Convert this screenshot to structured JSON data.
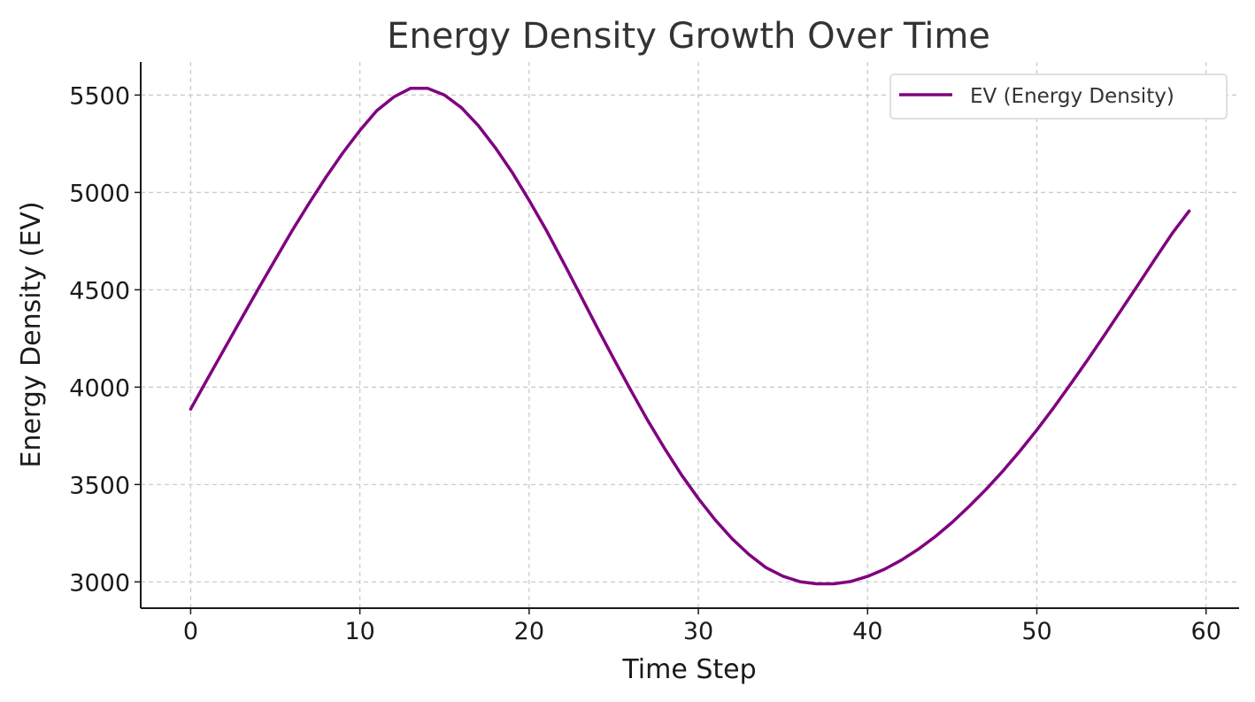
{
  "chart_data": {
    "type": "line",
    "title": "Energy Density Growth Over Time",
    "xlabel": "Time Step",
    "ylabel": "Energy Density (EV)",
    "xlim": [
      -2.95,
      61.95
    ],
    "ylim": [
      2865,
      5670
    ],
    "x_ticks": [
      0,
      10,
      20,
      30,
      40,
      50,
      60
    ],
    "y_ticks": [
      3000,
      3500,
      4000,
      4500,
      5000,
      5500
    ],
    "x_tick_labels": [
      "0",
      "10",
      "20",
      "30",
      "40",
      "50",
      "60"
    ],
    "y_tick_labels": [
      "3000",
      "3500",
      "4000",
      "4500",
      "5000",
      "5500"
    ],
    "grid": true,
    "legend_position": "top-right",
    "series": [
      {
        "name": "EV (Energy Density)",
        "color": "#800080",
        "x": [
          0,
          1,
          2,
          3,
          4,
          5,
          6,
          7,
          8,
          9,
          10,
          11,
          12,
          13,
          14,
          15,
          16,
          17,
          18,
          19,
          20,
          21,
          22,
          23,
          24,
          25,
          26,
          27,
          28,
          29,
          30,
          31,
          32,
          33,
          34,
          35,
          36,
          37,
          38,
          39,
          40,
          41,
          42,
          43,
          44,
          45,
          46,
          47,
          48,
          49,
          50,
          51,
          52,
          53,
          54,
          55,
          56,
          57,
          58,
          59
        ],
        "values": [
          3887,
          4043,
          4198,
          4352,
          4505,
          4655,
          4804,
          4945,
          5079,
          5204,
          5318,
          5420,
          5490,
          5535,
          5535,
          5500,
          5435,
          5343,
          5230,
          5103,
          4960,
          4808,
          4645,
          4478,
          4310,
          4145,
          3985,
          3830,
          3686,
          3550,
          3428,
          3318,
          3221,
          3140,
          3073,
          3029,
          3001,
          2990,
          2990,
          3002,
          3028,
          3065,
          3112,
          3168,
          3233,
          3306,
          3388,
          3475,
          3570,
          3672,
          3780,
          3895,
          4016,
          4140,
          4268,
          4398,
          4528,
          4660,
          4790,
          4905
        ]
      }
    ]
  }
}
